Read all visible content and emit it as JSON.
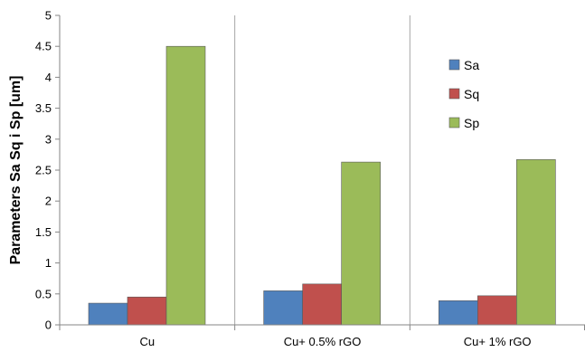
{
  "chart_data": {
    "type": "bar",
    "categories": [
      "Cu",
      "Cu+ 0.5% rGO",
      "Cu+ 1% rGO"
    ],
    "series": [
      {
        "name": "Sa",
        "values": [
          0.35,
          0.55,
          0.39
        ],
        "color": "#4f81bd"
      },
      {
        "name": "Sq",
        "values": [
          0.45,
          0.66,
          0.47
        ],
        "color": "#c0504d"
      },
      {
        "name": "Sp",
        "values": [
          4.5,
          2.63,
          2.67
        ],
        "color": "#9bbb59"
      }
    ],
    "title": "",
    "xlabel": "",
    "ylabel": "Parameters Sa Sq i Sp [um]",
    "ylim": [
      0,
      5
    ],
    "yticks": [
      0,
      0.5,
      1,
      1.5,
      2,
      2.5,
      3,
      3.5,
      4,
      4.5,
      5
    ],
    "ytick_labels": [
      "0",
      "0.5",
      "1",
      "1.5",
      "2",
      "2.5",
      "3",
      "3.5",
      "4",
      "4.5",
      "5"
    ],
    "grid": "vertical category separators",
    "legend": "right, inside plot"
  }
}
